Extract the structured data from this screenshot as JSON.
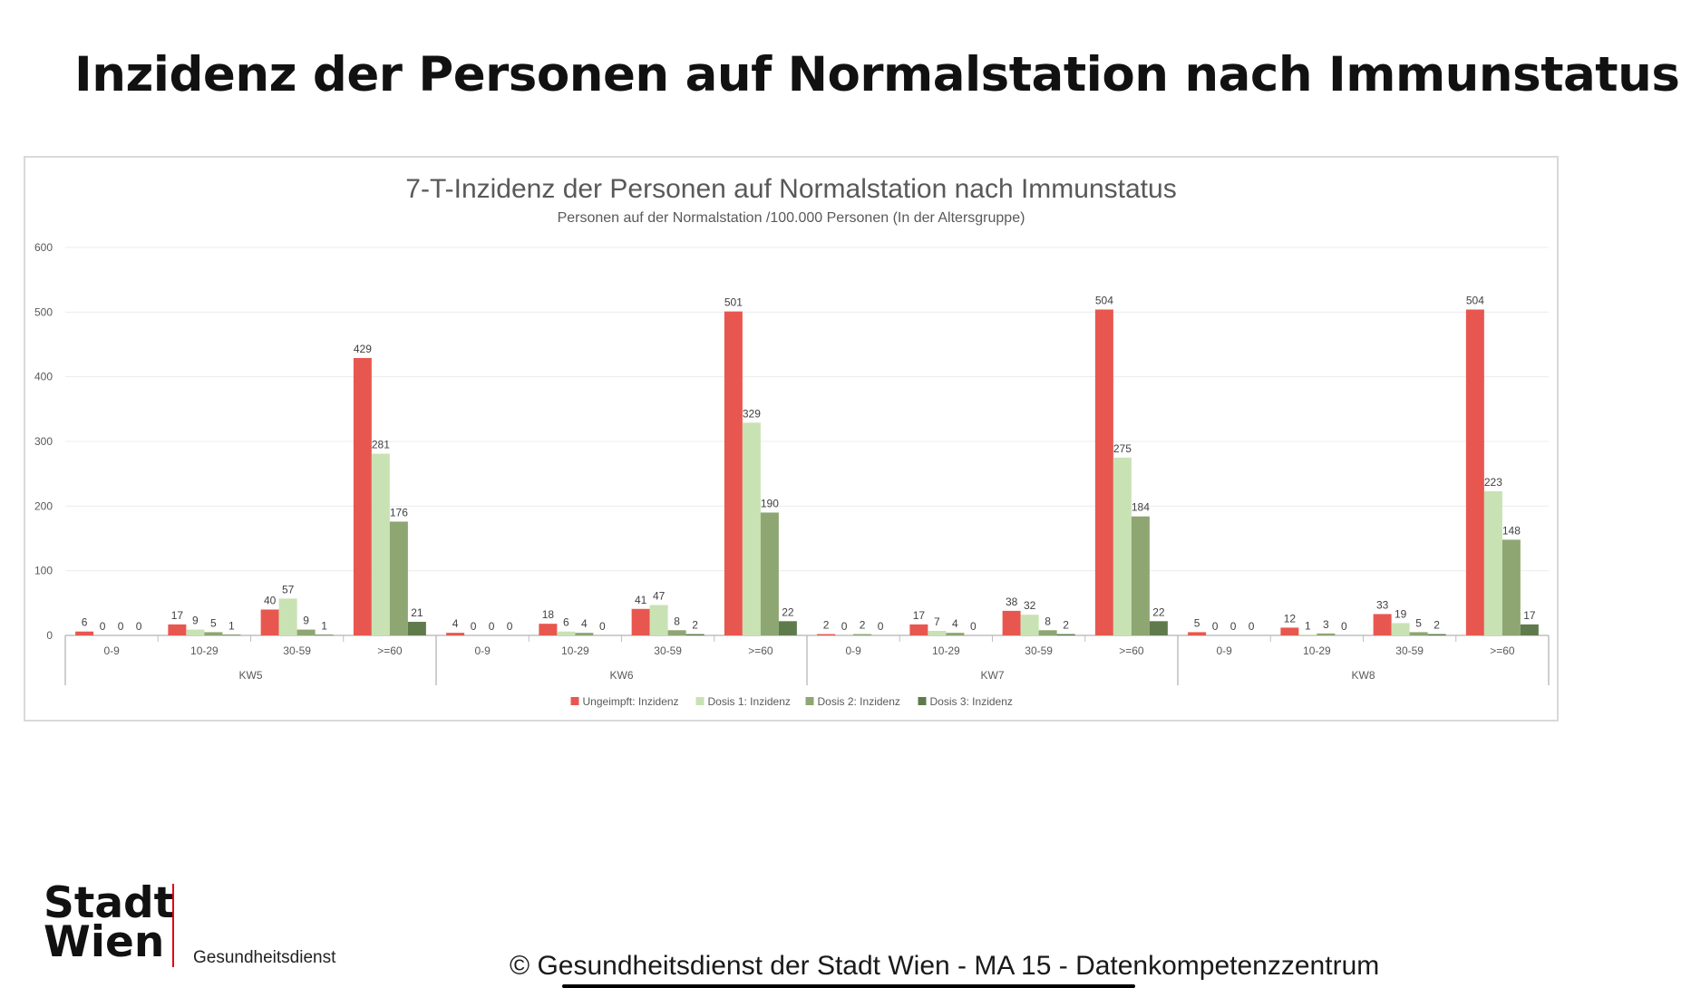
{
  "slide": {
    "title": "Inzidenz der Personen auf Normalstation nach Immunstatus"
  },
  "logo": {
    "line1": "Stadt",
    "line2": "Wien",
    "sub": "Gesundheitsdienst",
    "accent": "#e30613"
  },
  "footer": {
    "copyright": "© Gesundheitsdienst der Stadt Wien - MA 15 - Datenkompetenzzentrum"
  },
  "chart_data": {
    "type": "bar",
    "title": "7-T-Inzidenz der Personen auf Normalstation nach Immunstatus",
    "subtitle": "Personen auf der Normalstation /100.000 Personen (In der Altersgruppe)",
    "ylim": [
      0,
      600
    ],
    "yticks": [
      0,
      100,
      200,
      300,
      400,
      500,
      600
    ],
    "grid": true,
    "legend_position": "bottom",
    "groups": [
      "KW5",
      "KW6",
      "KW7",
      "KW8"
    ],
    "categories": [
      "0-9",
      "10-29",
      "30-59",
      ">=60"
    ],
    "series": [
      {
        "name": "Ungeimpft: Inzidenz",
        "color": "#e8574f",
        "values": [
          [
            6,
            17,
            40,
            429
          ],
          [
            4,
            18,
            41,
            501
          ],
          [
            2,
            17,
            38,
            504
          ],
          [
            5,
            12,
            33,
            504
          ]
        ]
      },
      {
        "name": "Dosis 1: Inzidenz",
        "color": "#c9e2b4",
        "values": [
          [
            0,
            9,
            57,
            281
          ],
          [
            0,
            6,
            47,
            329
          ],
          [
            0,
            7,
            32,
            275
          ],
          [
            0,
            1,
            19,
            223
          ]
        ]
      },
      {
        "name": "Dosis 2: Inzidenz",
        "color": "#8ea672",
        "values": [
          [
            0,
            5,
            9,
            176
          ],
          [
            0,
            4,
            8,
            190
          ],
          [
            2,
            4,
            8,
            184
          ],
          [
            0,
            3,
            5,
            148
          ]
        ]
      },
      {
        "name": "Dosis 3: Inzidenz",
        "color": "#5f7b4c",
        "values": [
          [
            0,
            1,
            1,
            21
          ],
          [
            0,
            0,
            2,
            22
          ],
          [
            0,
            0,
            2,
            22
          ],
          [
            0,
            0,
            2,
            17
          ]
        ]
      }
    ]
  }
}
